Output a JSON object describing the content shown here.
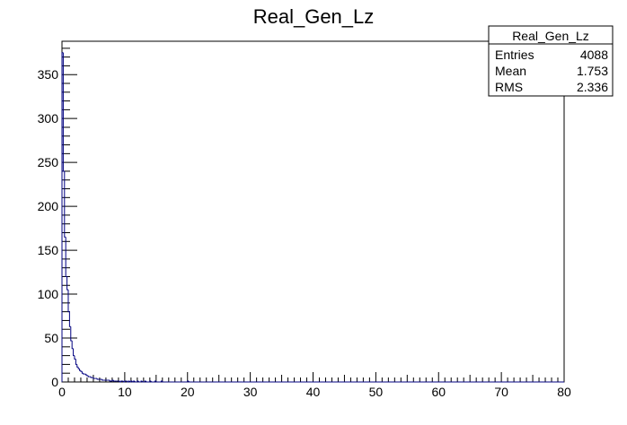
{
  "chart_data": {
    "type": "bar",
    "title": "Real_Gen_Lz",
    "xlabel": "",
    "ylabel": "",
    "xlim": [
      0,
      80
    ],
    "ylim": [
      0,
      388
    ],
    "x_ticks": [
      0,
      10,
      20,
      30,
      40,
      50,
      60,
      70,
      80
    ],
    "y_ticks": [
      0,
      50,
      100,
      150,
      200,
      250,
      300,
      350
    ],
    "grid": false,
    "histogram": {
      "bin_width": 0.2,
      "line_color": "#000080",
      "values": [
        375,
        240,
        165,
        120,
        105,
        80,
        63,
        47,
        38,
        30,
        26,
        20,
        17,
        15,
        13,
        12,
        10,
        9,
        9,
        8,
        7,
        6,
        6,
        5,
        5,
        4,
        4,
        4,
        3,
        3,
        3,
        3,
        2,
        2,
        2,
        2,
        2,
        2,
        1,
        1,
        2,
        1,
        1,
        1,
        1,
        1,
        0,
        1,
        1,
        0,
        1,
        1,
        0,
        1,
        0,
        1,
        0,
        1,
        0,
        0,
        1,
        0,
        0,
        1,
        0,
        0,
        1,
        0,
        0,
        0,
        1,
        0,
        0,
        0,
        1,
        0,
        0,
        0,
        0,
        1,
        0,
        0,
        0,
        0,
        0,
        0,
        0,
        0,
        0,
        0,
        0,
        0,
        0,
        0,
        0,
        0,
        0,
        0,
        0,
        0,
        1,
        0,
        0,
        0,
        0,
        0,
        0,
        0,
        0,
        0,
        0,
        0,
        0,
        0,
        0,
        0,
        0,
        0,
        0,
        0
      ]
    },
    "stats_box": {
      "name": "Real_Gen_Lz",
      "rows": [
        {
          "label": "Entries",
          "value": "4088"
        },
        {
          "label": "Mean",
          "value": "1.753"
        },
        {
          "label": "RMS",
          "value": "2.336"
        }
      ]
    }
  }
}
